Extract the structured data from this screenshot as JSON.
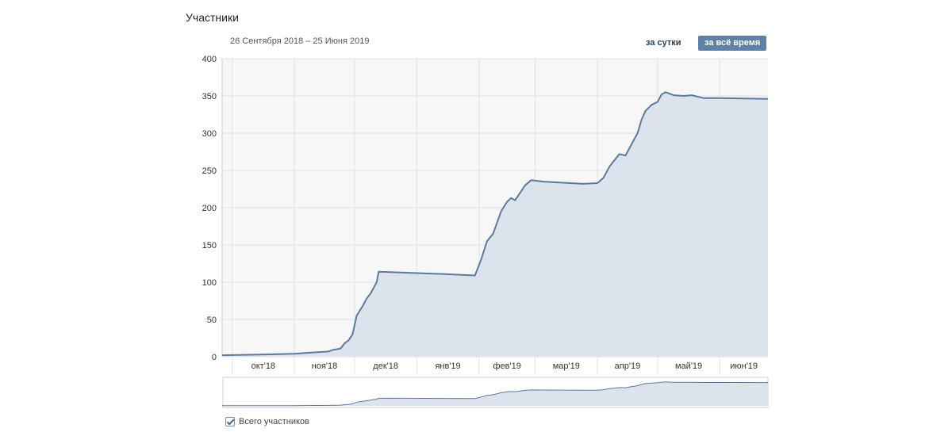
{
  "header": {
    "title": "Участники",
    "date_range": "26 Сентября 2018 – 25 Июня 2019",
    "btn_day": "за сутки",
    "btn_all": "за всё время"
  },
  "legend": {
    "label": "Всего участников",
    "checked": true
  },
  "colors": {
    "line": "#5b7a9d",
    "fill": "#dde3ec",
    "bg": "#f7f7f7",
    "grid": "#e2e2e2",
    "axis_text": "#333333",
    "active_button": "#5e81a8"
  },
  "chart_data": {
    "type": "area",
    "title": "",
    "xlabel": "",
    "ylabel": "",
    "ylim": [
      0,
      400
    ],
    "yticks": [
      "0",
      "50",
      "100",
      "150",
      "200",
      "250",
      "300",
      "350",
      "400"
    ],
    "xticks": [
      {
        "label": "окт'18",
        "date": "2018-10-01"
      },
      {
        "label": "ноя'18",
        "date": "2018-11-01"
      },
      {
        "label": "дек'18",
        "date": "2018-12-01"
      },
      {
        "label": "янв'19",
        "date": "2019-01-01"
      },
      {
        "label": "фев'19",
        "date": "2019-02-01"
      },
      {
        "label": "мар'19",
        "date": "2019-03-01"
      },
      {
        "label": "апр'19",
        "date": "2019-04-01"
      },
      {
        "label": "май'19",
        "date": "2019-05-01"
      },
      {
        "label": "июн'19",
        "date": "2019-06-01"
      }
    ],
    "xlim": [
      "2018-09-26",
      "2019-06-25"
    ],
    "grid": true,
    "series": [
      {
        "name": "Всего участников",
        "points": [
          [
            "2018-09-26",
            2
          ],
          [
            "2018-10-15",
            3
          ],
          [
            "2018-11-01",
            4
          ],
          [
            "2018-11-12",
            6
          ],
          [
            "2018-11-18",
            7
          ],
          [
            "2018-11-20",
            9
          ],
          [
            "2018-11-24",
            11
          ],
          [
            "2018-11-26",
            18
          ],
          [
            "2018-11-28",
            22
          ],
          [
            "2018-11-30",
            30
          ],
          [
            "2018-12-02",
            55
          ],
          [
            "2018-12-05",
            68
          ],
          [
            "2018-12-07",
            78
          ],
          [
            "2018-12-09",
            85
          ],
          [
            "2018-12-11",
            95
          ],
          [
            "2018-12-12",
            100
          ],
          [
            "2018-12-13",
            114
          ],
          [
            "2019-01-15",
            111
          ],
          [
            "2019-01-30",
            109
          ],
          [
            "2019-02-02",
            130
          ],
          [
            "2019-02-05",
            155
          ],
          [
            "2019-02-08",
            165
          ],
          [
            "2019-02-12",
            195
          ],
          [
            "2019-02-15",
            208
          ],
          [
            "2019-02-17",
            213
          ],
          [
            "2019-02-19",
            210
          ],
          [
            "2019-02-22",
            222
          ],
          [
            "2019-02-24",
            230
          ],
          [
            "2019-02-27",
            237
          ],
          [
            "2019-03-05",
            235
          ],
          [
            "2019-03-25",
            232
          ],
          [
            "2019-04-01",
            233
          ],
          [
            "2019-04-04",
            240
          ],
          [
            "2019-04-07",
            255
          ],
          [
            "2019-04-09",
            262
          ],
          [
            "2019-04-12",
            272
          ],
          [
            "2019-04-15",
            270
          ],
          [
            "2019-04-18",
            285
          ],
          [
            "2019-04-21",
            300
          ],
          [
            "2019-04-23",
            318
          ],
          [
            "2019-04-25",
            330
          ],
          [
            "2019-04-28",
            338
          ],
          [
            "2019-05-01",
            342
          ],
          [
            "2019-05-03",
            352
          ],
          [
            "2019-05-05",
            355
          ],
          [
            "2019-05-09",
            351
          ],
          [
            "2019-05-14",
            350
          ],
          [
            "2019-05-18",
            351
          ],
          [
            "2019-05-24",
            347
          ],
          [
            "2019-06-01",
            347
          ],
          [
            "2019-06-25",
            346
          ]
        ]
      }
    ]
  }
}
